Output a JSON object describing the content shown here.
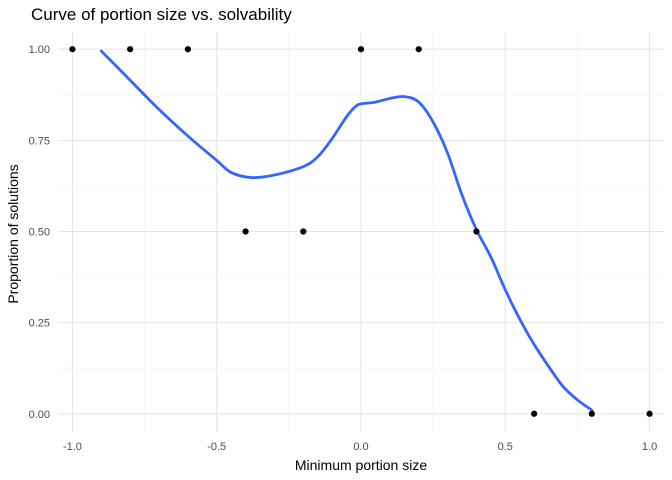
{
  "chart_data": {
    "type": "scatter",
    "title": "Curve of portion size vs. solvability",
    "xlabel": "Minimum portion size",
    "ylabel": "Proportion of solutions",
    "xlim": [
      -1.05,
      1.05
    ],
    "ylim": [
      -0.05,
      1.05
    ],
    "x_ticks": [
      -1.0,
      -0.5,
      0.0,
      0.5,
      1.0
    ],
    "x_tick_labels": [
      "-1.0",
      "-0.5",
      "0.0",
      "0.5",
      "1.0"
    ],
    "y_ticks": [
      0.0,
      0.25,
      0.5,
      0.75,
      1.0
    ],
    "y_tick_labels": [
      "0.00",
      "0.25",
      "0.50",
      "0.75",
      "1.00"
    ],
    "grid": true,
    "legend": "none",
    "point_color": "#000000",
    "smooth_color": "#3366FF",
    "points": [
      {
        "x": -1.0,
        "y": 1.0
      },
      {
        "x": -0.8,
        "y": 1.0
      },
      {
        "x": -0.6,
        "y": 1.0
      },
      {
        "x": -0.4,
        "y": 0.5
      },
      {
        "x": -0.2,
        "y": 0.5
      },
      {
        "x": 0.0,
        "y": 1.0
      },
      {
        "x": 0.2,
        "y": 1.0
      },
      {
        "x": 0.4,
        "y": 0.5
      },
      {
        "x": 0.6,
        "y": 0.0
      },
      {
        "x": 0.8,
        "y": 0.0
      },
      {
        "x": 1.0,
        "y": 0.0
      }
    ],
    "smooth_curve": [
      {
        "x": -0.9,
        "y": 0.995
      },
      {
        "x": -0.8,
        "y": 0.915
      },
      {
        "x": -0.7,
        "y": 0.835
      },
      {
        "x": -0.6,
        "y": 0.762
      },
      {
        "x": -0.5,
        "y": 0.695
      },
      {
        "x": -0.45,
        "y": 0.662
      },
      {
        "x": -0.38,
        "y": 0.648
      },
      {
        "x": -0.3,
        "y": 0.655
      },
      {
        "x": -0.2,
        "y": 0.678
      },
      {
        "x": -0.15,
        "y": 0.705
      },
      {
        "x": -0.1,
        "y": 0.755
      },
      {
        "x": -0.05,
        "y": 0.815
      },
      {
        "x": -0.02,
        "y": 0.842
      },
      {
        "x": 0.0,
        "y": 0.85
      },
      {
        "x": 0.05,
        "y": 0.855
      },
      {
        "x": 0.1,
        "y": 0.865
      },
      {
        "x": 0.15,
        "y": 0.87
      },
      {
        "x": 0.2,
        "y": 0.855
      },
      {
        "x": 0.25,
        "y": 0.8
      },
      {
        "x": 0.3,
        "y": 0.715
      },
      {
        "x": 0.35,
        "y": 0.6
      },
      {
        "x": 0.4,
        "y": 0.505
      },
      {
        "x": 0.45,
        "y": 0.43
      },
      {
        "x": 0.5,
        "y": 0.34
      },
      {
        "x": 0.55,
        "y": 0.26
      },
      {
        "x": 0.6,
        "y": 0.19
      },
      {
        "x": 0.65,
        "y": 0.13
      },
      {
        "x": 0.7,
        "y": 0.075
      },
      {
        "x": 0.75,
        "y": 0.038
      },
      {
        "x": 0.8,
        "y": 0.01
      }
    ]
  }
}
